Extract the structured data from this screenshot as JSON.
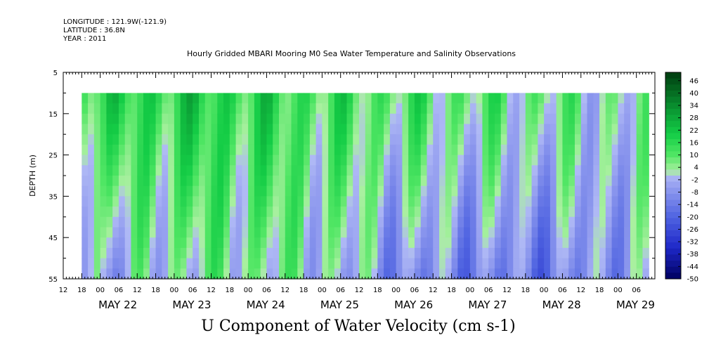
{
  "header": {
    "longitude": "LONGITUDE : 121.9W(-121.9)",
    "latitude": "LATITUDE : 36.8N",
    "year": "YEAR : 2011"
  },
  "chart_data": {
    "type": "heatmap",
    "title": "Hourly Gridded MBARI Mooring M0 Sea Water Temperature and Salinity Observations",
    "bottom_title": "U Component of Water Velocity (cm s-1)",
    "ylabel": "DEPTH (m)",
    "y_axis": {
      "range": [
        5,
        55
      ],
      "reversed": true,
      "ticks": [
        "5",
        "15",
        "25",
        "35",
        "45",
        "55"
      ],
      "data_depth_range": [
        10,
        55
      ]
    },
    "x_axis": {
      "range": [
        "2011-05-21T12:00",
        "2011-05-29T12:00"
      ],
      "hour_ticks": [
        "12",
        "18",
        "00",
        "06",
        "12",
        "18",
        "00",
        "06",
        "12",
        "18",
        "00",
        "06",
        "12",
        "18",
        "00",
        "06",
        "12",
        "18",
        "00",
        "06",
        "12",
        "18",
        "00",
        "06",
        "12",
        "18",
        "00",
        "06",
        "12",
        "18",
        "00",
        "06"
      ],
      "day_labels": [
        "MAY 22",
        "MAY 23",
        "MAY 24",
        "MAY 25",
        "MAY 26",
        "MAY 27",
        "MAY 28",
        "MAY 29"
      ],
      "data_time_range": [
        "2011-05-21T18:00",
        "2011-05-29T10:00"
      ]
    },
    "colorbar": {
      "levels": [
        "46",
        "40",
        "34",
        "28",
        "22",
        "16",
        "10",
        "4",
        "-2",
        "-8",
        "-14",
        "-20",
        "-26",
        "-32",
        "-38",
        "-44",
        "-50"
      ],
      "min": -50,
      "max": 50,
      "colors": {
        "strong_positive": "#00330a",
        "positive": "#12d040",
        "weak_positive": "#9ef09c",
        "weak_negative": "#aab0f0",
        "negative": "#3c4ccf",
        "strong_negative": "#000060"
      }
    },
    "profiles_by_day_cm_s": [
      {
        "day": "MAY 22",
        "top": 14,
        "bottom": -6
      },
      {
        "day": "MAY 23",
        "top": 18,
        "bottom": 2
      },
      {
        "day": "MAY 24",
        "top": 16,
        "bottom": 4
      },
      {
        "day": "MAY 25",
        "top": 12,
        "bottom": 0
      },
      {
        "day": "MAY 26",
        "top": 10,
        "bottom": -10
      },
      {
        "day": "MAY 27",
        "top": 8,
        "bottom": -12
      },
      {
        "day": "MAY 28",
        "top": 6,
        "bottom": -14
      },
      {
        "day": "MAY 29",
        "top": 2,
        "bottom": -6
      }
    ]
  }
}
